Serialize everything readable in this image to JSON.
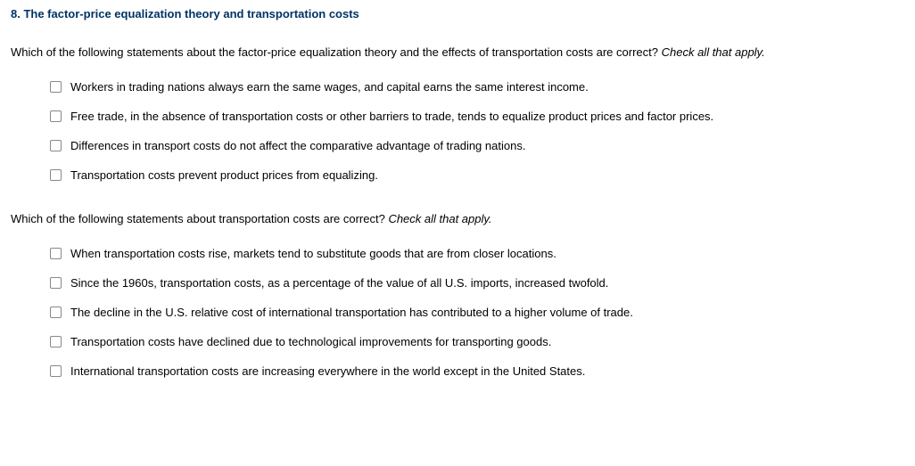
{
  "heading": "8. The factor-price equalization theory and transportation costs",
  "heading_color": "#003366",
  "text_color": "#000000",
  "background_color": "#ffffff",
  "checkbox_border_color": "#888888",
  "font_family": "Verdana, Geneva, sans-serif",
  "base_font_size": 13,
  "question1": {
    "prompt": "Which of the following statements about the factor-price equalization theory and the effects of transportation costs are correct? ",
    "instruction": "Check all that apply.",
    "options": [
      "Workers in trading nations always earn the same wages, and capital earns the same interest income.",
      "Free trade, in the absence of transportation costs or other barriers to trade, tends to equalize product prices and factor prices.",
      "Differences in transport costs do not affect the comparative advantage of trading nations.",
      "Transportation costs prevent product prices from equalizing."
    ]
  },
  "question2": {
    "prompt": "Which of the following statements about transportation costs are correct? ",
    "instruction": "Check all that apply.",
    "options": [
      "When transportation costs rise, markets tend to substitute goods that are from closer locations.",
      "Since the 1960s, transportation costs, as a percentage of the value of all U.S. imports, increased twofold.",
      "The decline in the U.S. relative cost of international transportation has contributed to a higher volume of trade.",
      "Transportation costs have declined due to technological improvements for transporting goods.",
      "International transportation costs are increasing everywhere in the world except in the United States."
    ]
  }
}
